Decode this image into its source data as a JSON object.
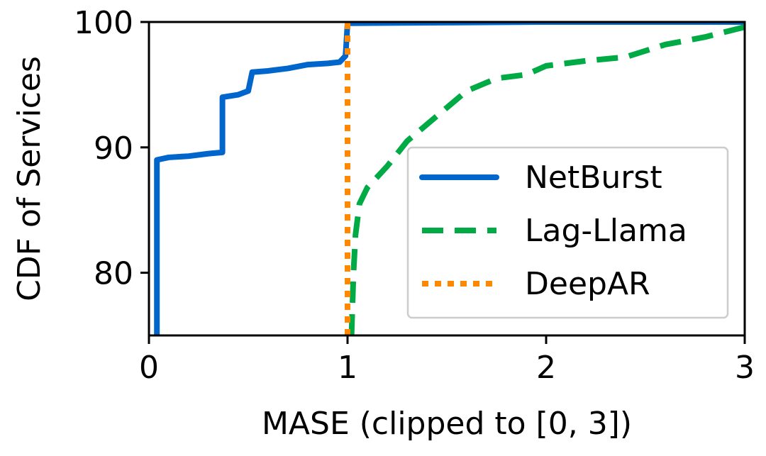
{
  "chart_data": {
    "type": "line",
    "title": "",
    "xlabel": "MASE (clipped to [0, 3])",
    "ylabel": "CDF of Services",
    "xlim": [
      0,
      3
    ],
    "ylim": [
      75,
      100
    ],
    "xticks": [
      0,
      1,
      2,
      3
    ],
    "yticks": [
      80,
      90,
      100
    ],
    "grid": false,
    "legend_position": "center-right",
    "series": [
      {
        "name": "NetBurst",
        "color": "#0066cc",
        "style": "solid",
        "points": [
          [
            0.04,
            75
          ],
          [
            0.04,
            89.0
          ],
          [
            0.1,
            89.2
          ],
          [
            0.2,
            89.3
          ],
          [
            0.3,
            89.5
          ],
          [
            0.37,
            89.6
          ],
          [
            0.37,
            94.0
          ],
          [
            0.45,
            94.2
          ],
          [
            0.5,
            94.5
          ],
          [
            0.52,
            96.0
          ],
          [
            0.6,
            96.1
          ],
          [
            0.7,
            96.3
          ],
          [
            0.8,
            96.6
          ],
          [
            0.9,
            96.7
          ],
          [
            0.96,
            96.8
          ],
          [
            0.99,
            97.3
          ],
          [
            1.0,
            99.9
          ],
          [
            1.5,
            99.95
          ],
          [
            2.0,
            100
          ],
          [
            3.0,
            100
          ]
        ]
      },
      {
        "name": "Lag-Llama",
        "color": "#00aa44",
        "style": "dashed",
        "points": [
          [
            1.02,
            75
          ],
          [
            1.03,
            80
          ],
          [
            1.04,
            83
          ],
          [
            1.06,
            85.5
          ],
          [
            1.1,
            86.8
          ],
          [
            1.2,
            88.5
          ],
          [
            1.3,
            90.5
          ],
          [
            1.45,
            92.5
          ],
          [
            1.6,
            94.5
          ],
          [
            1.75,
            95.5
          ],
          [
            1.9,
            95.8
          ],
          [
            2.0,
            96.5
          ],
          [
            2.2,
            96.9
          ],
          [
            2.4,
            97.2
          ],
          [
            2.5,
            97.7
          ],
          [
            2.6,
            98.2
          ],
          [
            2.8,
            98.8
          ],
          [
            2.95,
            99.4
          ],
          [
            3.0,
            99.6
          ]
        ]
      },
      {
        "name": "DeepAR",
        "color": "#ff8800",
        "style": "dotted",
        "points": [
          [
            1.0,
            75
          ],
          [
            1.0,
            100
          ]
        ]
      }
    ]
  }
}
